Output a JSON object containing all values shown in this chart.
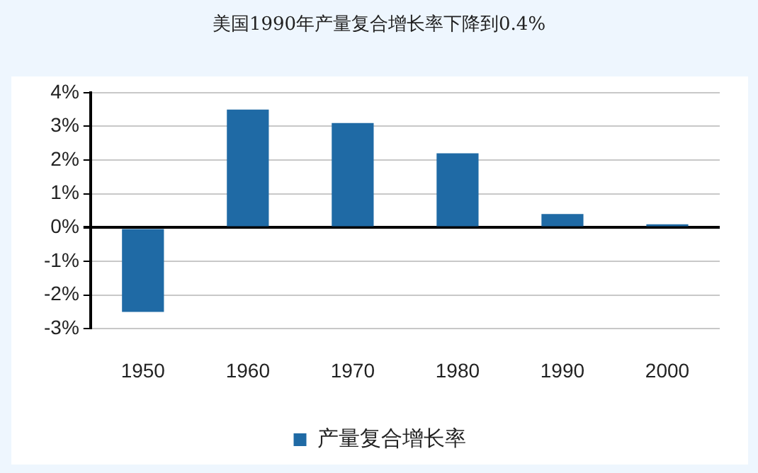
{
  "chart_data": {
    "type": "bar",
    "title": "美国1990年产量复合增长率下降到0.4%",
    "categories": [
      "1950",
      "1960",
      "1970",
      "1980",
      "1990",
      "2000"
    ],
    "series": [
      {
        "name": "产量复合增长率",
        "color": "#1f6aa5",
        "values": [
          -2.5,
          3.5,
          3.1,
          2.2,
          0.4,
          0.1
        ]
      }
    ],
    "ylim": [
      -3,
      4
    ],
    "yticks": [
      {
        "value": -3,
        "label": "-3%"
      },
      {
        "value": -2,
        "label": "-2%"
      },
      {
        "value": -1,
        "label": "-1%"
      },
      {
        "value": 0,
        "label": "0%"
      },
      {
        "value": 1,
        "label": "1%"
      },
      {
        "value": 2,
        "label": "2%"
      },
      {
        "value": 3,
        "label": "3%"
      },
      {
        "value": 4,
        "label": "4%"
      }
    ],
    "grid": "y",
    "legend": "bottom"
  }
}
